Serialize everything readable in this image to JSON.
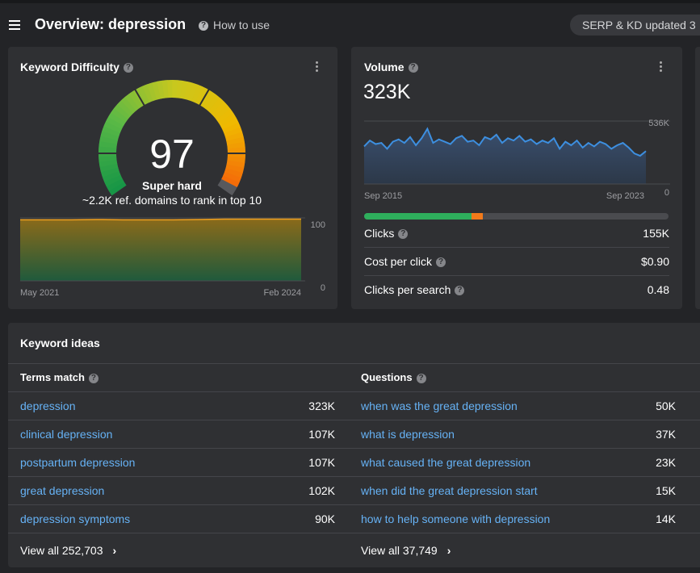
{
  "header": {
    "title": "Overview: depression",
    "help": "How to use",
    "status": "SERP & KD updated 3"
  },
  "keyword_difficulty": {
    "title": "Keyword Difficulty",
    "score": 97,
    "gauge_range": [
      0,
      100
    ],
    "level": "Super hard",
    "note": "~2.2K ref. domains to rank in top 10",
    "history": {
      "values": [
        97,
        97,
        97,
        97.5,
        97,
        97,
        97,
        97.5,
        98,
        98,
        98,
        98
      ],
      "ylim": [
        0,
        100
      ],
      "yticks": [
        0,
        100
      ],
      "start": "May 2021",
      "end": "Feb 2024"
    }
  },
  "volume": {
    "title": "Volume",
    "value": "323K",
    "trend": {
      "values": [
        320000,
        370000,
        340000,
        350000,
        300000,
        360000,
        380000,
        350000,
        400000,
        330000,
        390000,
        470000,
        350000,
        380000,
        360000,
        340000,
        390000,
        410000,
        360000,
        370000,
        330000,
        400000,
        380000,
        420000,
        350000,
        390000,
        370000,
        410000,
        360000,
        380000,
        340000,
        370000,
        350000,
        390000,
        300000,
        360000,
        330000,
        370000,
        310000,
        350000,
        320000,
        360000,
        340000,
        300000,
        330000,
        350000,
        310000,
        260000,
        240000,
        280000
      ],
      "ylim": [
        0,
        536000
      ],
      "yticks": [
        0,
        {
          "value": 536000,
          "label": "536K"
        }
      ],
      "start": "Sep 2015",
      "end": "Sep 2023"
    },
    "metrics": [
      {
        "label": "Clicks",
        "value": "155K"
      },
      {
        "label": "Cost per click",
        "value": "$0.90"
      },
      {
        "label": "Clicks per search",
        "value": "0.48"
      }
    ]
  },
  "keyword_ideas": {
    "title": "Keyword ideas",
    "columns": [
      {
        "title": "Terms match",
        "rows": [
          {
            "term": "depression",
            "volume": "323K"
          },
          {
            "term": "clinical depression",
            "volume": "107K"
          },
          {
            "term": "postpartum depression",
            "volume": "107K"
          },
          {
            "term": "great depression",
            "volume": "102K"
          },
          {
            "term": "depression symptoms",
            "volume": "90K"
          }
        ],
        "view_all": "View all 252,703"
      },
      {
        "title": "Questions",
        "rows": [
          {
            "term": "when was the great depression",
            "volume": "50K"
          },
          {
            "term": "what is depression",
            "volume": "37K"
          },
          {
            "term": "what caused the great depression",
            "volume": "23K"
          },
          {
            "term": "when did the great depression start",
            "volume": "15K"
          },
          {
            "term": "how to help someone with depression",
            "volume": "14K"
          }
        ],
        "view_all": "View all 37,749"
      }
    ]
  }
}
